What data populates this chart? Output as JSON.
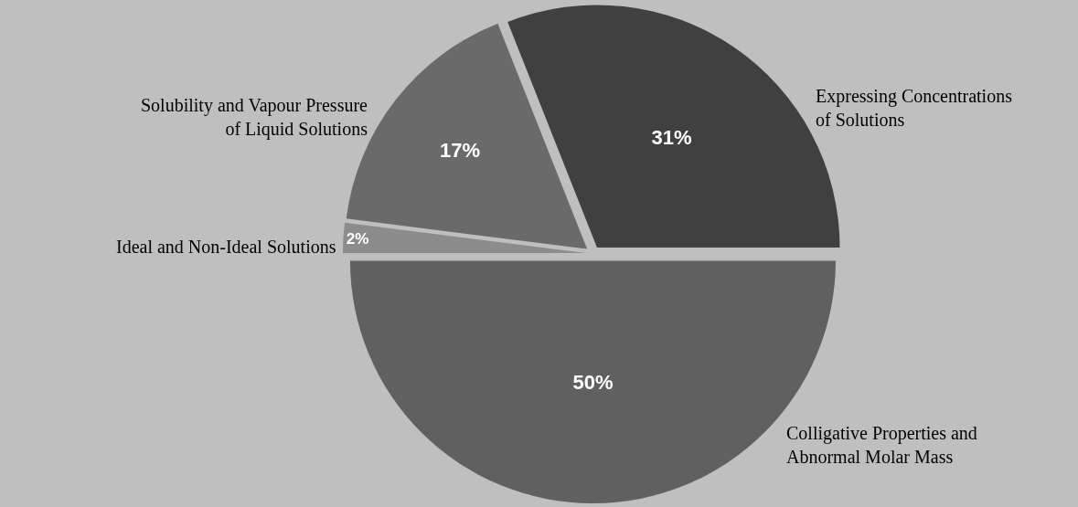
{
  "chart_data": {
    "type": "pie",
    "categories": [
      "Expressing Concentrations of Solutions",
      "Colligative Properties and Abnormal Molar Mass",
      "Ideal and Non-Ideal Solutions",
      "Solubility and Vapour Pressure of Liquid Solutions"
    ],
    "values": [
      31,
      50,
      2,
      17
    ],
    "colors": [
      "#404040",
      "#606060",
      "#8c8c8c",
      "#6a6a6a"
    ],
    "value_labels": [
      "31%",
      "50%",
      "2%",
      "17%"
    ],
    "legend": false
  }
}
